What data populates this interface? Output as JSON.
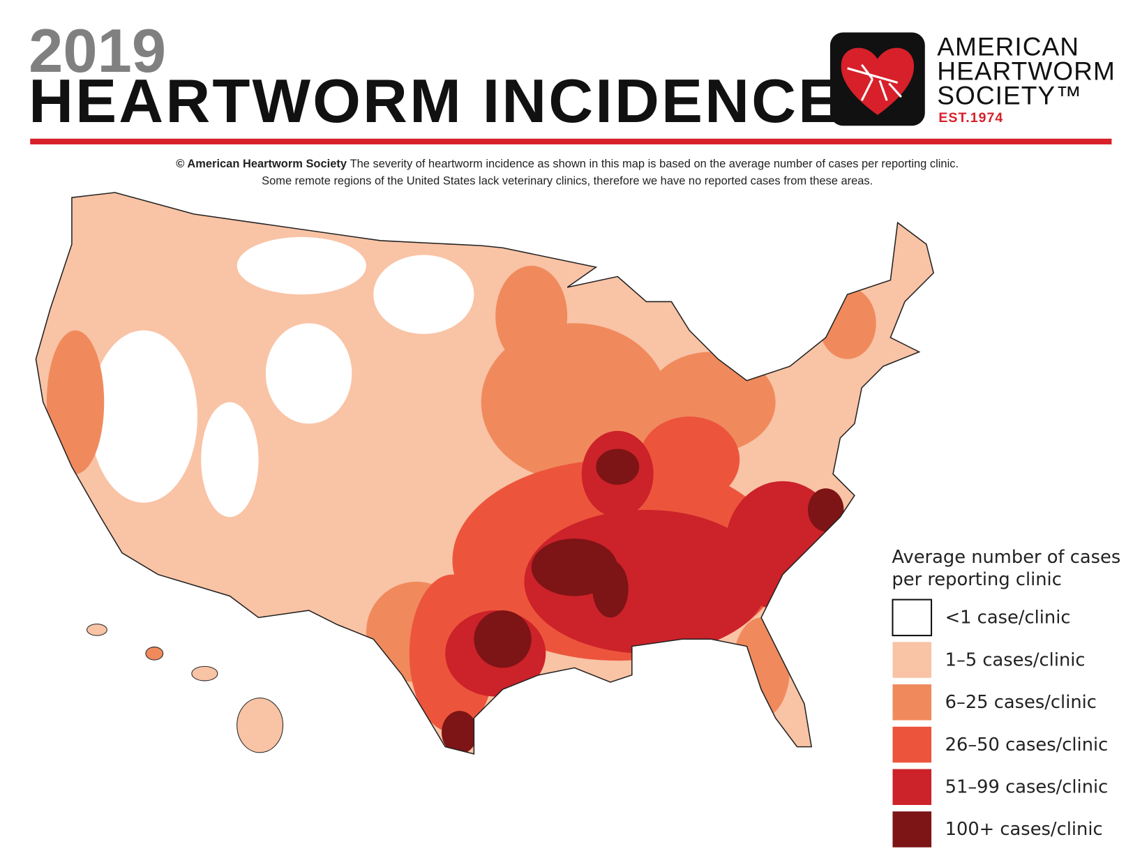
{
  "header": {
    "year": "2019",
    "title": "HEARTWORM INCIDENCE"
  },
  "logo": {
    "lines": [
      "AMERICAN",
      "HEARTWORM",
      "SOCIETY™"
    ],
    "established": "EST.1974"
  },
  "caption": {
    "source": "© American Heartworm Society",
    "line1": "The severity of heartworm incidence as shown in this map is based on the average number of cases per reporting clinic.",
    "line2": "Some remote regions of the United States lack veterinary clinics, therefore we have no reported cases from these areas."
  },
  "legend": {
    "title_lines": [
      "Average number of cases",
      "per reporting clinic"
    ],
    "items": [
      {
        "label": "<1 case/clinic",
        "color": "#ffffff"
      },
      {
        "label": "1–5 cases/clinic",
        "color": "#f9c3a5"
      },
      {
        "label": "6–25 cases/clinic",
        "color": "#f08a5d"
      },
      {
        "label": "26–50 cases/clinic",
        "color": "#ec553c"
      },
      {
        "label": "51–99 cases/clinic",
        "color": "#cc2229"
      },
      {
        "label": "100+ cases/clinic",
        "color": "#7d1416"
      }
    ]
  }
}
